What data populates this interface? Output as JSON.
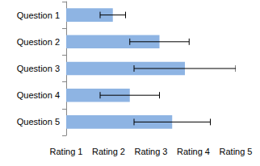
{
  "chart_data": {
    "type": "bar",
    "orientation": "horizontal",
    "categories": [
      "Question 1",
      "Question 2",
      "Question 3",
      "Question 4",
      "Question 5"
    ],
    "values": [
      2.1,
      3.2,
      3.8,
      2.5,
      3.5
    ],
    "errors": [
      0.3,
      0.7,
      1.2,
      0.7,
      0.9
    ],
    "color": "#8eb4e3",
    "xlim": [
      1,
      5
    ],
    "xticks": [
      {
        "value": 1,
        "label": "Rating 1"
      },
      {
        "value": 2,
        "label": "Rating 2"
      },
      {
        "value": 3,
        "label": "Rating 3"
      },
      {
        "value": 4,
        "label": "Rating 4"
      },
      {
        "value": 5,
        "label": "Rating 5"
      }
    ],
    "grid": false
  }
}
